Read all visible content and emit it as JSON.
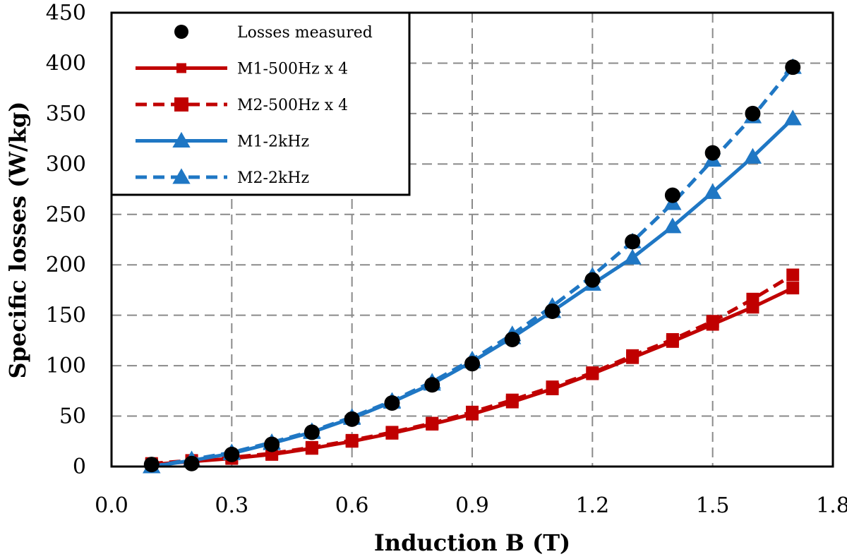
{
  "chart_data": {
    "type": "line",
    "title": "",
    "xlabel": "Induction B (T)",
    "ylabel": "Specific losses (W/kg)",
    "xlim": [
      0.0,
      1.8
    ],
    "ylim": [
      0,
      450
    ],
    "xticks": [
      "0.0",
      "0.3",
      "0.6",
      "0.9",
      "1.2",
      "1.5",
      "1.8"
    ],
    "yticks": [
      "0",
      "50",
      "100",
      "150",
      "200",
      "250",
      "300",
      "350",
      "400",
      "450"
    ],
    "grid": true,
    "legend_position": "top-left",
    "x": [
      0.1,
      0.2,
      0.3,
      0.4,
      0.5,
      0.6,
      0.7,
      0.8,
      0.9,
      1.0,
      1.1,
      1.2,
      1.3,
      1.4,
      1.5,
      1.6,
      1.7
    ],
    "series": [
      {
        "name": "Losses measured",
        "style": "markers",
        "marker": "circle",
        "color": "#000000",
        "values": [
          2,
          3,
          12,
          22,
          34,
          47,
          63,
          81,
          102,
          126,
          154,
          185,
          223,
          269,
          311,
          350,
          396
        ]
      },
      {
        "name": "M1-500Hz x 4",
        "style": "solid",
        "marker": "square",
        "color": "#c00000",
        "values": [
          2,
          5,
          8,
          12,
          18,
          25,
          33,
          42,
          52,
          64,
          77,
          92,
          108,
          124,
          141,
          158,
          177
        ]
      },
      {
        "name": "M2-500Hz x 4",
        "style": "dashed",
        "marker": "square",
        "color": "#c00000",
        "values": [
          3,
          6,
          9,
          13,
          19,
          26,
          34,
          43,
          54,
          66,
          79,
          93,
          110,
          126,
          144,
          166,
          190
        ]
      },
      {
        "name": "M1-2kHz",
        "style": "solid",
        "marker": "triangle",
        "color": "#1f77c4",
        "values": [
          0,
          6,
          13,
          23,
          34,
          48,
          64,
          82,
          104,
          128,
          154,
          181,
          207,
          238,
          272,
          307,
          345
        ]
      },
      {
        "name": "M2-2kHz",
        "style": "dashed",
        "marker": "triangle",
        "color": "#1f77c4",
        "values": [
          0,
          7,
          14,
          24,
          35,
          49,
          65,
          84,
          106,
          131,
          159,
          189,
          223,
          261,
          304,
          347,
          396
        ]
      }
    ]
  }
}
